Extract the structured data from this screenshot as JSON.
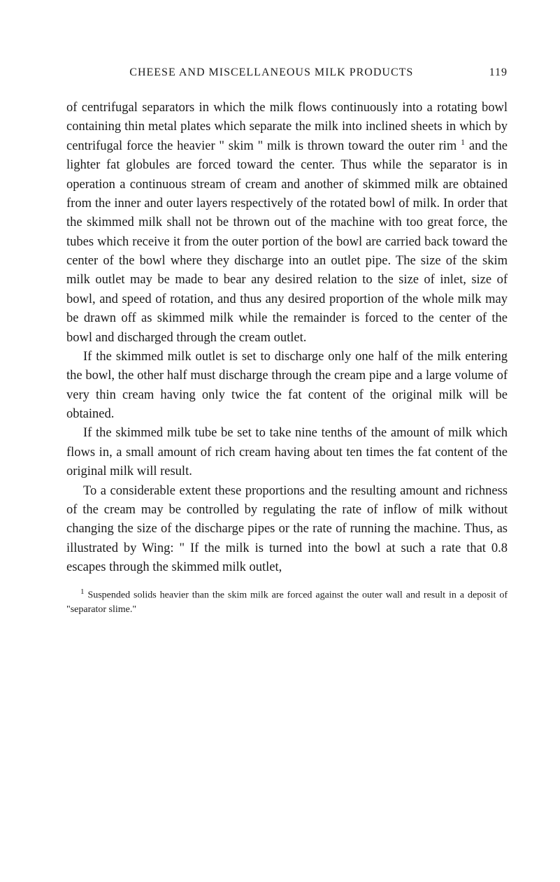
{
  "header": {
    "title": "CHEESE AND MISCELLANEOUS MILK PRODUCTS",
    "page_number": "119"
  },
  "paragraphs": {
    "p1": "of centrifugal separators in which the milk flows continuously into a rotating bowl containing thin metal plates which separate the milk into inclined sheets in which by centrifugal force the heavier \" skim \" milk is thrown toward the outer rim ",
    "p1_sup": "1",
    "p1_cont": " and the lighter fat globules are forced toward the center. Thus while the separator is in operation a continuous stream of cream and another of skimmed milk are obtained from the inner and outer layers respectively of the rotated bowl of milk. In order that the skimmed milk shall not be thrown out of the machine with too great force, the tubes which receive it from the outer portion of the bowl are carried back toward the center of the bowl where they discharge into an outlet pipe. The size of the skim milk outlet may be made to bear any desired relation to the size of inlet, size of bowl, and speed of rotation, and thus any desired proportion of the whole milk may be drawn off as skimmed milk while the remainder is forced to the center of the bowl and discharged through the cream outlet.",
    "p2": "If the skimmed milk outlet is set to discharge only one half of the milk entering the bowl, the other half must discharge through the cream pipe and a large volume of very thin cream having only twice the fat content of the original milk will be obtained.",
    "p3": "If the skimmed milk tube be set to take nine tenths of the amount of milk which flows in, a small amount of rich cream having about ten times the fat content of the original milk will result.",
    "p4": "To a considerable extent these proportions and the resulting amount and richness of the cream may be controlled by regulating the rate of inflow of milk without changing the size of the discharge pipes or the rate of running the machine. Thus, as illustrated by Wing: \" If the milk is turned into the bowl at such a rate that 0.8 escapes through the skimmed milk outlet,"
  },
  "footnote": {
    "marker": "1",
    "text": " Suspended solids heavier than the skim milk are forced against the outer wall and result in a deposit of \"separator slime.\""
  }
}
